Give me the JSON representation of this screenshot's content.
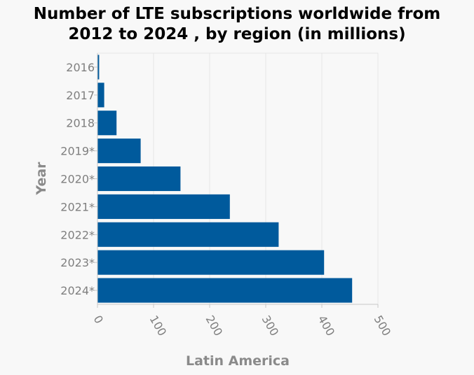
{
  "chart_data": {
    "type": "bar",
    "orientation": "horizontal",
    "title_lines": [
      "Number of LTE subscriptions worldwide from",
      "2012 to 2024 , by region (in millions)"
    ],
    "title": "Number of LTE subscriptions worldwide from 2012 to 2024 , by region (in millions)",
    "xlabel": "Latin America",
    "ylabel": "Year",
    "categories": [
      "2016",
      "2017",
      "2018",
      "2019*",
      "2020*",
      "2021*",
      "2022*",
      "2023*",
      "2024*"
    ],
    "series": [
      {
        "name": "Latin America",
        "values": [
          3,
          12,
          34,
          77,
          148,
          236,
          323,
          404,
          454
        ]
      }
    ],
    "xlim": [
      0,
      500
    ],
    "xticks": [
      0,
      100,
      200,
      300,
      400,
      500
    ],
    "grid": true,
    "legend": "none",
    "colors": {
      "bar": "#005a9c",
      "grid": "#e6e6e6",
      "background": "#f8f8f8",
      "axis": "#c8c8c8"
    }
  }
}
